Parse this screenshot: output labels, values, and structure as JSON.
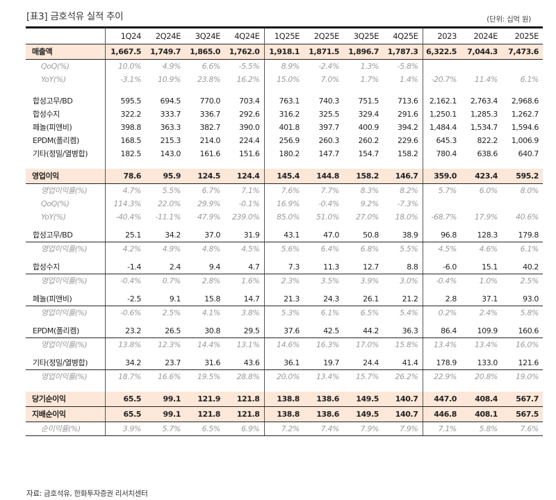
{
  "title": "[표3]  금호석유 실적 추이",
  "unit": "(단위: 십억 원)",
  "columns": [
    "1Q24",
    "2Q24E",
    "3Q24E",
    "4Q24E",
    "1Q25E",
    "2Q25E",
    "3Q25E",
    "4Q25E",
    "2023",
    "2024E",
    "2025E"
  ],
  "rows": {
    "sales": {
      "label": "매출액",
      "values": [
        "1,667.5",
        "1,749.7",
        "1,865.0",
        "1,762.0",
        "1,918.1",
        "1,871.5",
        "1,896.7",
        "1,787.3",
        "6,322.5",
        "7,044.3",
        "7,473.6"
      ]
    },
    "sales_qoq": {
      "label": "QoQ(%)",
      "values": [
        "10.0%",
        "4.9%",
        "6.6%",
        "-5.5%",
        "8.9%",
        "-2.4%",
        "1.3%",
        "-5.8%",
        "",
        "",
        ""
      ]
    },
    "sales_yoy": {
      "label": "YoY(%)",
      "values": [
        "-3.1%",
        "10.9%",
        "23.8%",
        "16.2%",
        "15.0%",
        "7.0%",
        "1.7%",
        "1.4%",
        "-20.7%",
        "11.4%",
        "6.1%"
      ]
    },
    "seg_rubber": {
      "label": "합성고무/BD",
      "values": [
        "595.5",
        "694.5",
        "770.0",
        "703.4",
        "763.1",
        "740.3",
        "751.5",
        "713.6",
        "2,162.1",
        "2,763.4",
        "2,968.6"
      ]
    },
    "seg_resin": {
      "label": "합성수지",
      "values": [
        "322.2",
        "333.7",
        "336.7",
        "292.6",
        "316.2",
        "325.5",
        "329.4",
        "291.6",
        "1,250.1",
        "1,285.3",
        "1,262.7"
      ]
    },
    "seg_phenol": {
      "label": "페놀(피앤비)",
      "values": [
        "398.8",
        "363.3",
        "382.7",
        "390.0",
        "401.8",
        "397.7",
        "400.9",
        "394.2",
        "1,484.4",
        "1,534.7",
        "1,594.6"
      ]
    },
    "seg_epdm": {
      "label": "EPDM(폴리켐)",
      "values": [
        "168.5",
        "215.3",
        "214.0",
        "224.4",
        "256.9",
        "260.3",
        "260.2",
        "229.6",
        "645.3",
        "822.2",
        "1,006.9"
      ]
    },
    "seg_other": {
      "label": "기타(정밀/열병합)",
      "values": [
        "182.5",
        "143.0",
        "161.6",
        "151.6",
        "180.2",
        "147.7",
        "154.7",
        "158.2",
        "780.4",
        "638.6",
        "640.7"
      ]
    },
    "op": {
      "label": "영업이익",
      "values": [
        "78.6",
        "95.9",
        "124.5",
        "124.4",
        "145.4",
        "144.8",
        "158.2",
        "146.7",
        "359.0",
        "423.4",
        "595.2"
      ]
    },
    "op_margin": {
      "label": "영업이익률(%)",
      "values": [
        "4.7%",
        "5.5%",
        "6.7%",
        "7.1%",
        "7.6%",
        "7.7%",
        "8.3%",
        "8.2%",
        "5.7%",
        "6.0%",
        "8.0%"
      ]
    },
    "op_qoq": {
      "label": "QoQ(%)",
      "values": [
        "114.3%",
        "22.0%",
        "29.9%",
        "-0.1%",
        "16.9%",
        "-0.4%",
        "9.2%",
        "-7.3%",
        "",
        "",
        ""
      ]
    },
    "op_yoy": {
      "label": "YoY(%)",
      "values": [
        "-40.4%",
        "-11.1%",
        "47.9%",
        "239.0%",
        "85.0%",
        "51.0%",
        "27.0%",
        "18.0%",
        "-68.7%",
        "17.9%",
        "40.6%"
      ]
    },
    "op_rubber": {
      "label": "합성고무/BD",
      "values": [
        "25.1",
        "34.2",
        "37.0",
        "31.9",
        "43.1",
        "47.0",
        "50.8",
        "38.9",
        "96.8",
        "128.3",
        "179.8"
      ]
    },
    "op_rubber_m": {
      "label": "영업이익률(%)",
      "values": [
        "4.2%",
        "4.9%",
        "4.8%",
        "4.5%",
        "5.6%",
        "6.4%",
        "6.8%",
        "5.5%",
        "4.5%",
        "4.6%",
        "6.1%"
      ]
    },
    "op_resin": {
      "label": "합성수지",
      "values": [
        "-1.4",
        "2.4",
        "9.4",
        "4.7",
        "7.3",
        "11.3",
        "12.7",
        "8.8",
        "-6.0",
        "15.1",
        "40.2"
      ]
    },
    "op_resin_m": {
      "label": "영업이익률(%)",
      "values": [
        "-0.4%",
        "0.7%",
        "2.8%",
        "1.6%",
        "2.3%",
        "3.5%",
        "3.9%",
        "3.0%",
        "-0.4%",
        "1.0%",
        "2.5%"
      ]
    },
    "op_phenol": {
      "label": "페놀(피앤비)",
      "values": [
        "-2.5",
        "9.1",
        "15.8",
        "14.7",
        "21.3",
        "24.3",
        "26.1",
        "21.2",
        "2.8",
        "37.1",
        "93.0"
      ]
    },
    "op_phenol_m": {
      "label": "영업이익률(%)",
      "values": [
        "-0.6%",
        "2.5%",
        "4.1%",
        "3.8%",
        "5.3%",
        "6.1%",
        "6.5%",
        "5.4%",
        "0.2%",
        "2.4%",
        "5.8%"
      ]
    },
    "op_epdm": {
      "label": "EPDM(폴리켐)",
      "values": [
        "23.2",
        "26.5",
        "30.8",
        "29.5",
        "37.6",
        "42.5",
        "44.2",
        "36.3",
        "86.4",
        "109.9",
        "160.6"
      ]
    },
    "op_epdm_m": {
      "label": "영업이익률(%)",
      "values": [
        "13.8%",
        "12.3%",
        "14.4%",
        "13.1%",
        "14.6%",
        "16.3%",
        "17.0%",
        "15.8%",
        "13.4%",
        "13.4%",
        "16.0%"
      ]
    },
    "op_other": {
      "label": "기타(정밀/열병합)",
      "values": [
        "34.2",
        "23.7",
        "31.6",
        "43.6",
        "36.1",
        "19.7",
        "24.4",
        "41.4",
        "178.9",
        "133.0",
        "121.6"
      ]
    },
    "op_other_m": {
      "label": "영업이익률(%)",
      "values": [
        "18.7%",
        "16.6%",
        "19.5%",
        "28.8%",
        "20.0%",
        "13.4%",
        "15.7%",
        "26.2%",
        "22.9%",
        "20.8%",
        "19.0%"
      ]
    },
    "ni": {
      "label": "당기순이익",
      "values": [
        "65.5",
        "99.1",
        "121.9",
        "121.8",
        "138.8",
        "138.6",
        "149.5",
        "140.7",
        "447.0",
        "408.4",
        "567.7"
      ]
    },
    "ni_ctrl": {
      "label": "지배순이익",
      "values": [
        "65.5",
        "99.1",
        "121.8",
        "121.8",
        "138.8",
        "138.6",
        "149.5",
        "140.7",
        "446.8",
        "408.1",
        "567.5"
      ]
    },
    "ni_margin": {
      "label": "순이익률(%)",
      "values": [
        "3.9%",
        "5.7%",
        "6.5%",
        "6.9%",
        "7.2%",
        "7.4%",
        "7.9%",
        "7.9%",
        "7.1%",
        "5.8%",
        "7.6%"
      ]
    }
  },
  "source": "자료: 금호석유, 한화투자증권 리서치센터",
  "colors": {
    "highlight": "#fce7d8",
    "pct_text": "#9a9a9a",
    "rule": "#111111"
  }
}
